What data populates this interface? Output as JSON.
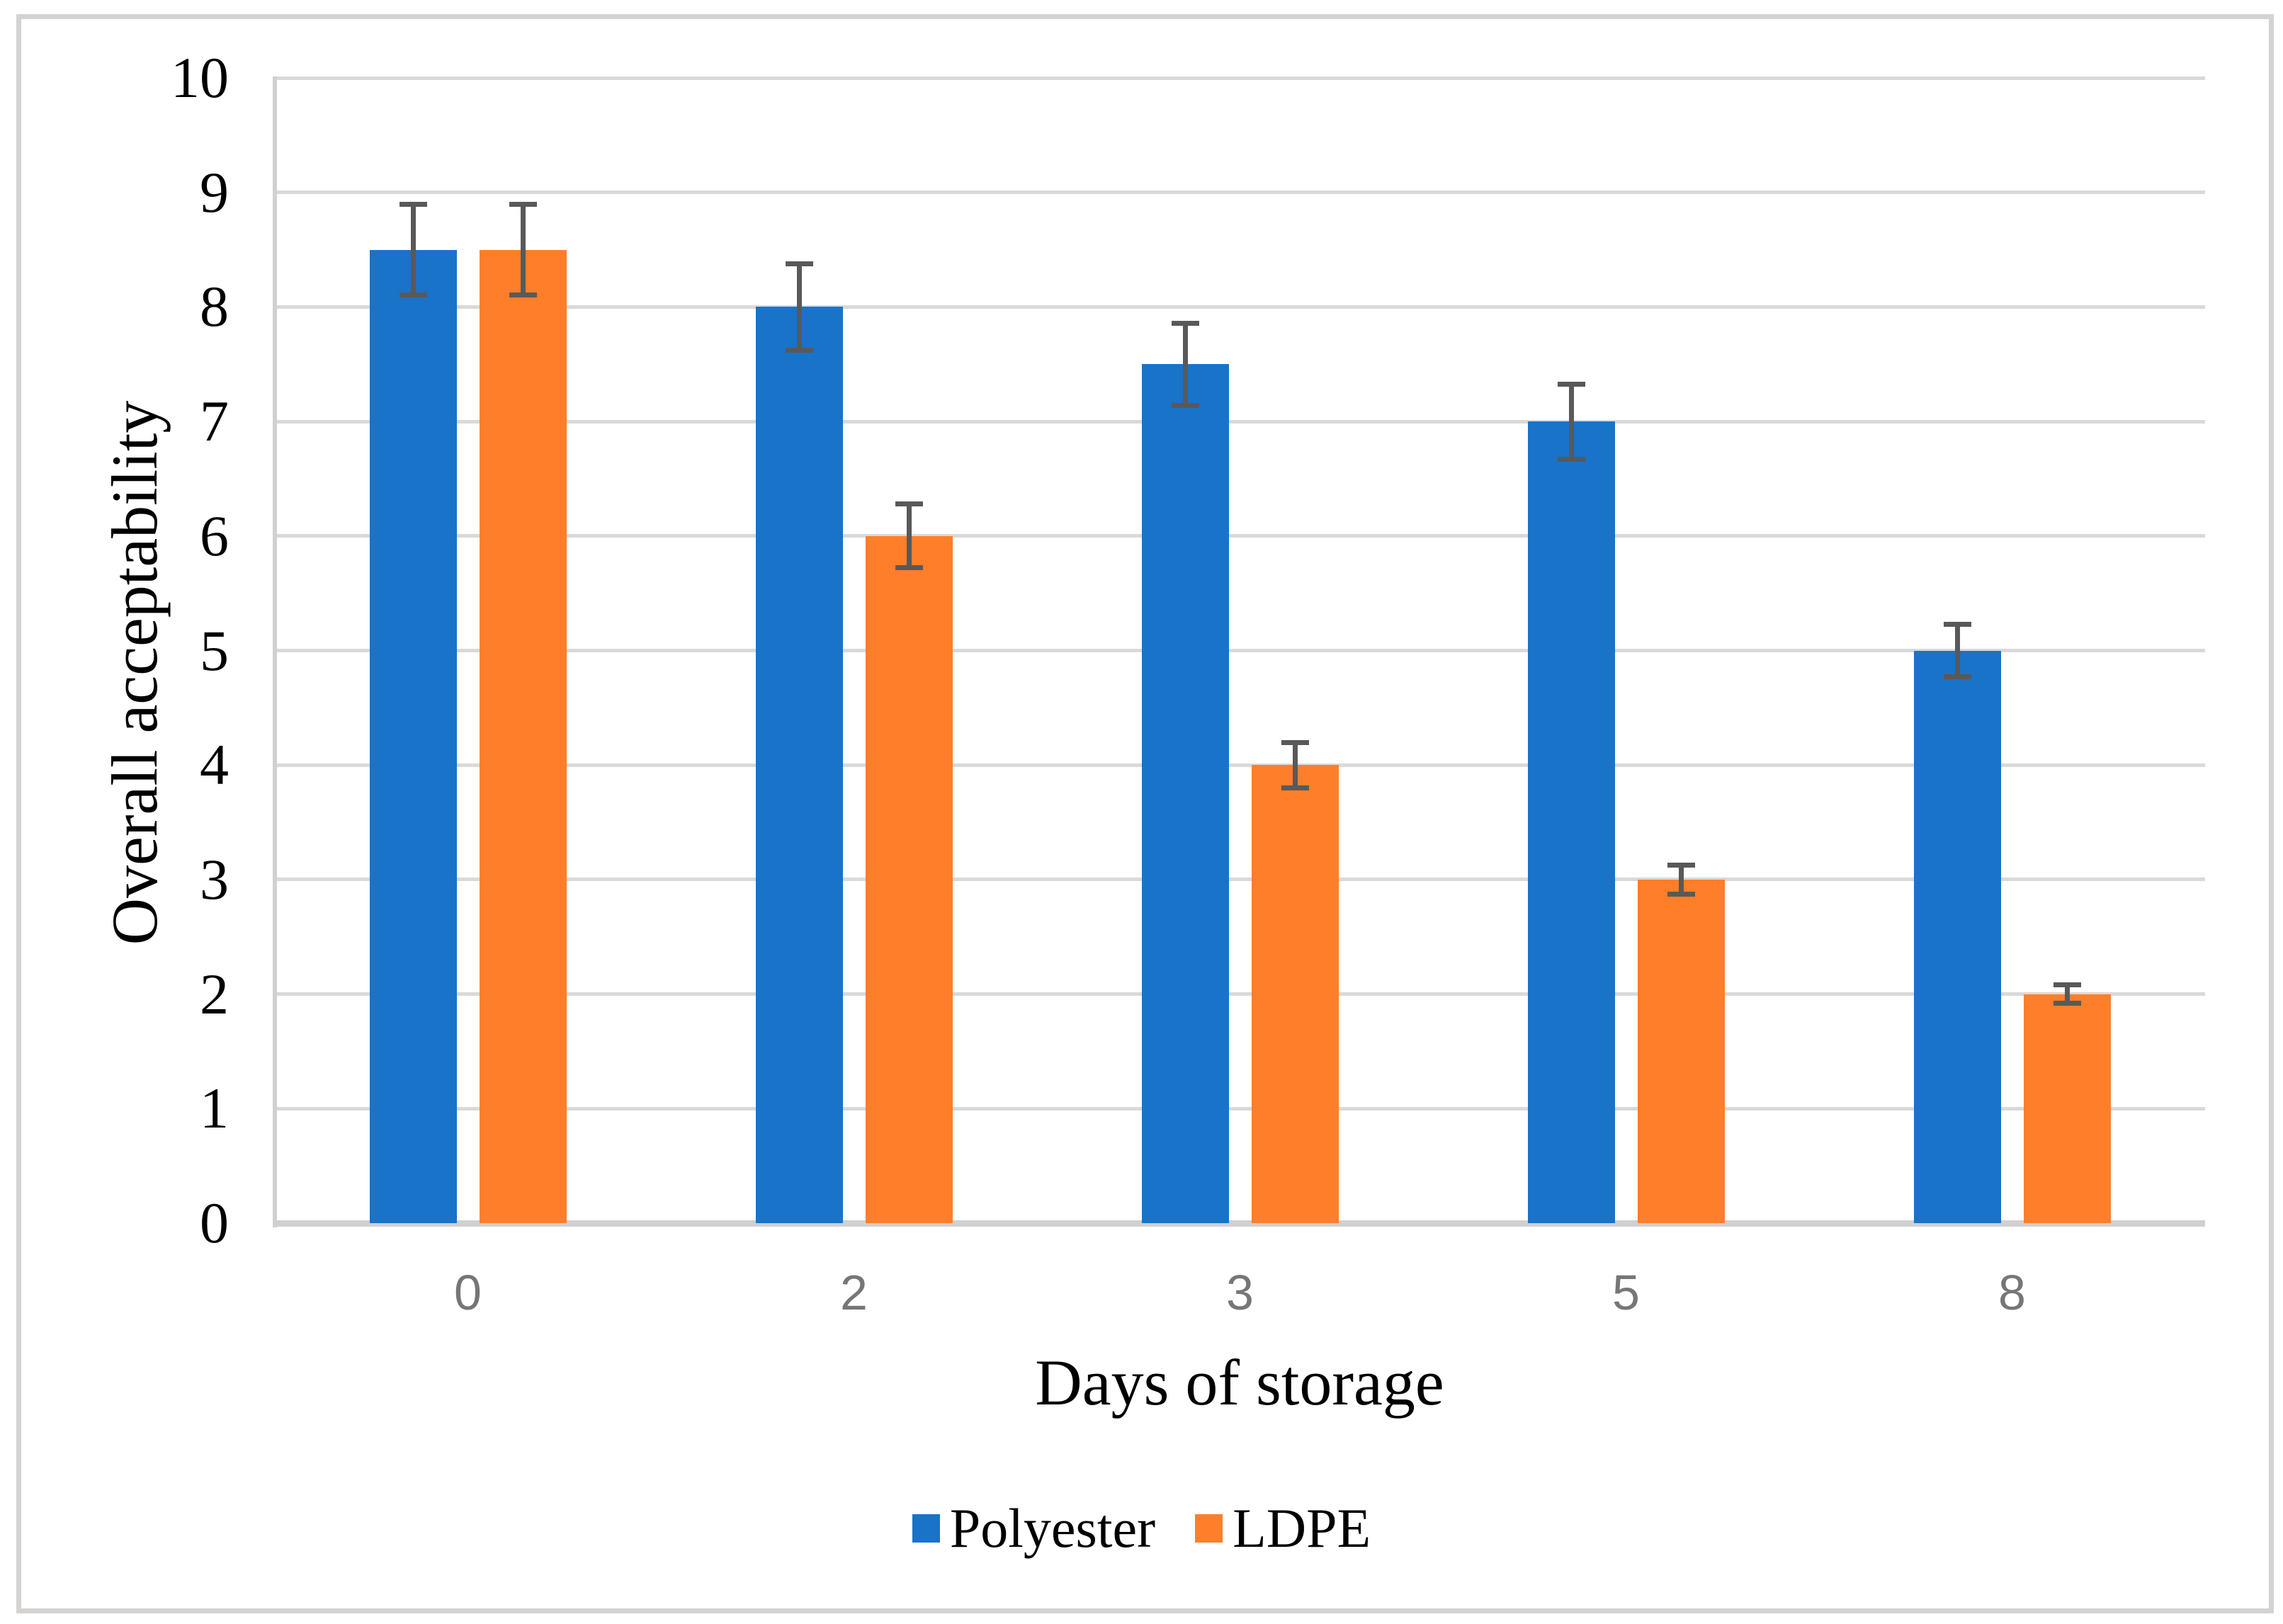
{
  "chart_data": {
    "type": "bar",
    "categories": [
      "0",
      "2",
      "3",
      "5",
      "8"
    ],
    "series": [
      {
        "name": "Polyester",
        "color": "#1973C9",
        "values": [
          8.5,
          8,
          7.5,
          7,
          5
        ],
        "error_bars": [
          0.42,
          0.4,
          0.38,
          0.35,
          0.25
        ]
      },
      {
        "name": "LDPE",
        "color": "#FF7E29",
        "values": [
          8.5,
          6,
          4,
          3,
          2
        ],
        "error_bars": [
          0.42,
          0.3,
          0.22,
          0.15,
          0.1
        ]
      }
    ],
    "xlabel": "Days of storage",
    "ylabel": "Overall acceptability",
    "ylim": [
      0,
      10
    ],
    "yticks": [
      0,
      1,
      2,
      3,
      4,
      5,
      6,
      7,
      8,
      9,
      10
    ],
    "grid": true,
    "legend_position": "bottom-center",
    "colors": {
      "error_bar": "#595959",
      "gridline": "#D9D9D9",
      "axis_line": "#D2CFCF",
      "x_tick_label": "#767676",
      "y_tick_label": "#000000",
      "figure_border": "#D5D2D2"
    }
  }
}
